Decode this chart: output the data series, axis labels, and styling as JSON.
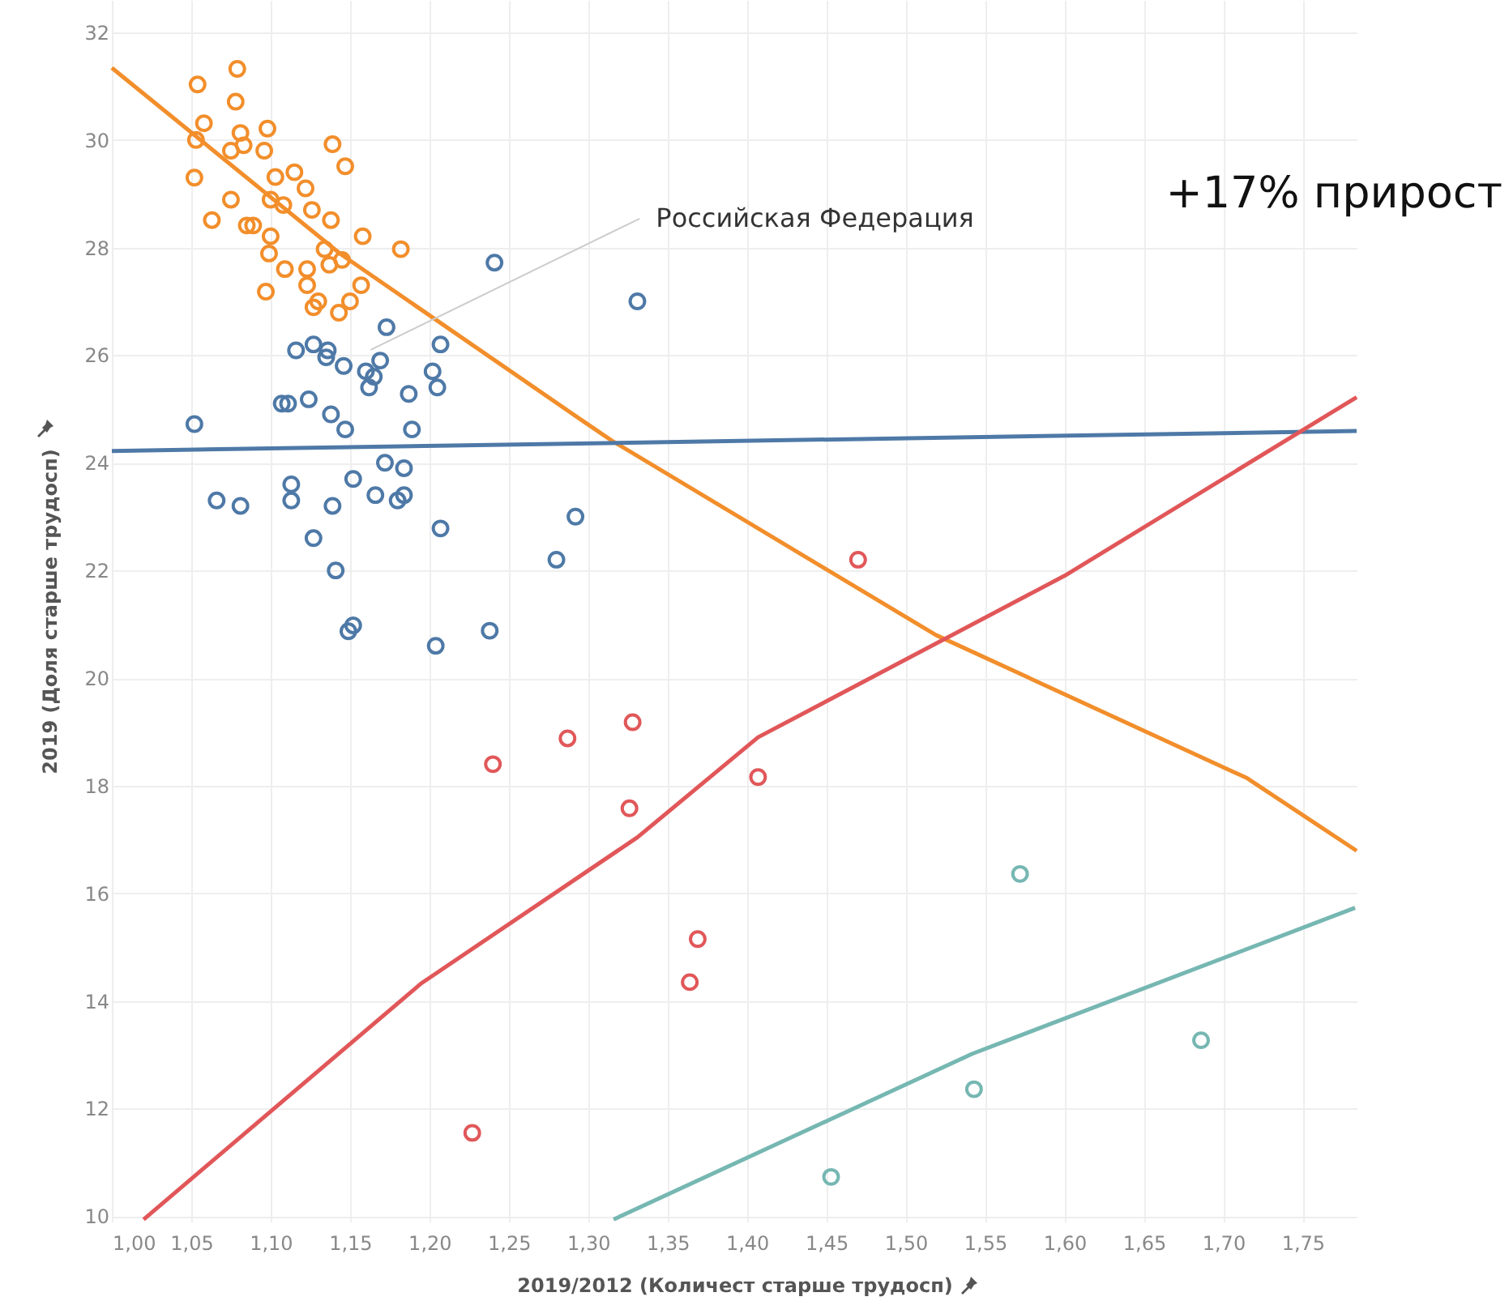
{
  "chart_data": {
    "type": "scatter",
    "xlabel": "2019/2012 (Количест старше трудосп)",
    "ylabel": "2019 (Доля старше трудосп)",
    "xlim": [
      1.0,
      1.784
    ],
    "ylim": [
      9.9,
      32.6
    ],
    "xticks": [
      {
        "value": 1.0,
        "label": "1,00"
      },
      {
        "value": 1.05,
        "label": "1,05"
      },
      {
        "value": 1.1,
        "label": "1,10"
      },
      {
        "value": 1.15,
        "label": "1,15"
      },
      {
        "value": 1.2,
        "label": "1,20"
      },
      {
        "value": 1.25,
        "label": "1,25"
      },
      {
        "value": 1.3,
        "label": "1,30"
      },
      {
        "value": 1.35,
        "label": "1,35"
      },
      {
        "value": 1.4,
        "label": "1,40"
      },
      {
        "value": 1.45,
        "label": "1,45"
      },
      {
        "value": 1.5,
        "label": "1,50"
      },
      {
        "value": 1.55,
        "label": "1,55"
      },
      {
        "value": 1.6,
        "label": "1,60"
      },
      {
        "value": 1.65,
        "label": "1,65"
      },
      {
        "value": 1.7,
        "label": "1,70"
      },
      {
        "value": 1.75,
        "label": "1,75"
      }
    ],
    "yticks": [
      10,
      12,
      14,
      16,
      18,
      20,
      22,
      24,
      26,
      28,
      30,
      32
    ],
    "grid": true,
    "marker": "circle",
    "line_style": "solid",
    "annotations": [
      {
        "text": "Российская Федерация",
        "x": 1.163,
        "y": 26.1
      },
      "+17% прирост"
    ],
    "series": [
      {
        "type": "scatter",
        "color": "#f28e2b",
        "x": [
          1.054,
          1.079,
          1.078,
          1.058,
          1.053,
          1.081,
          1.083,
          1.075,
          1.098,
          1.096,
          1.139,
          1.147,
          1.052,
          1.103,
          1.115,
          1.122,
          1.075,
          1.1,
          1.108,
          1.126,
          1.063,
          1.085,
          1.089,
          1.138,
          1.1,
          1.158,
          1.182,
          1.099,
          1.134,
          1.145,
          1.137,
          1.109,
          1.123,
          1.123,
          1.157,
          1.097,
          1.13,
          1.127,
          1.15,
          1.143
        ],
        "values": [
          31.03,
          31.32,
          30.71,
          30.31,
          30.0,
          30.13,
          29.9,
          29.8,
          30.21,
          29.8,
          29.92,
          29.51,
          29.3,
          29.31,
          29.4,
          29.1,
          28.89,
          28.89,
          28.79,
          28.7,
          28.51,
          28.41,
          28.41,
          28.51,
          28.21,
          28.21,
          27.97,
          27.89,
          27.97,
          27.77,
          27.68,
          27.6,
          27.6,
          27.3,
          27.3,
          27.18,
          27.0,
          26.89,
          27.0,
          26.79
        ]
      },
      {
        "type": "scatter",
        "color": "#4e79a7",
        "x": [
          1.241,
          1.173,
          1.116,
          1.127,
          1.136,
          1.135,
          1.146,
          1.169,
          1.16,
          1.165,
          1.162,
          1.207,
          1.202,
          1.205,
          1.187,
          1.107,
          1.111,
          1.124,
          1.138,
          1.147,
          1.189,
          1.052,
          1.172,
          1.184,
          1.152,
          1.113,
          1.113,
          1.066,
          1.081,
          1.139,
          1.166,
          1.18,
          1.184,
          1.127,
          1.207,
          1.292,
          1.28,
          1.141,
          1.152,
          1.149,
          1.238,
          1.204,
          1.331
        ],
        "values": [
          27.72,
          26.52,
          26.09,
          26.2,
          26.09,
          25.96,
          25.8,
          25.9,
          25.7,
          25.6,
          25.4,
          26.2,
          25.7,
          25.4,
          25.28,
          25.1,
          25.1,
          25.18,
          24.9,
          24.62,
          24.62,
          24.72,
          24.0,
          23.9,
          23.7,
          23.6,
          23.3,
          23.3,
          23.2,
          23.2,
          23.4,
          23.3,
          23.4,
          22.6,
          22.78,
          23.0,
          22.2,
          22.0,
          20.98,
          20.87,
          20.88,
          20.6,
          27.0
        ]
      },
      {
        "type": "scatter",
        "color": "#e15759",
        "x": [
          1.24,
          1.287,
          1.328,
          1.326,
          1.407,
          1.47,
          1.369,
          1.364,
          1.227
        ],
        "values": [
          18.4,
          18.88,
          19.18,
          17.58,
          18.16,
          22.2,
          15.15,
          14.35,
          11.55
        ]
      },
      {
        "type": "scatter",
        "color": "#76b7b2",
        "x": [
          1.572,
          1.543,
          1.686,
          1.453
        ],
        "values": [
          16.36,
          12.36,
          13.27,
          10.73
        ]
      },
      {
        "type": "line",
        "marker": "none",
        "color": "#f28e2b",
        "x": [
          1.0,
          1.144,
          1.297,
          1.315,
          1.519,
          1.715,
          1.784
        ],
        "values": [
          31.34,
          27.88,
          24.77,
          24.41,
          20.8,
          18.14,
          16.79
        ]
      },
      {
        "type": "line",
        "marker": "none",
        "color": "#4e79a7",
        "x": [
          1.0,
          1.784
        ],
        "values": [
          24.22,
          24.59
        ]
      },
      {
        "type": "line",
        "marker": "none",
        "color": "#e15759",
        "x": [
          1.02,
          1.195,
          1.331,
          1.407,
          1.6,
          1.784
        ],
        "values": [
          9.94,
          14.33,
          17.04,
          18.9,
          21.9,
          25.22
        ]
      },
      {
        "type": "line",
        "marker": "none",
        "color": "#76b7b2",
        "x": [
          1.316,
          1.542,
          1.783
        ],
        "values": [
          9.94,
          13.02,
          15.73
        ]
      }
    ]
  }
}
